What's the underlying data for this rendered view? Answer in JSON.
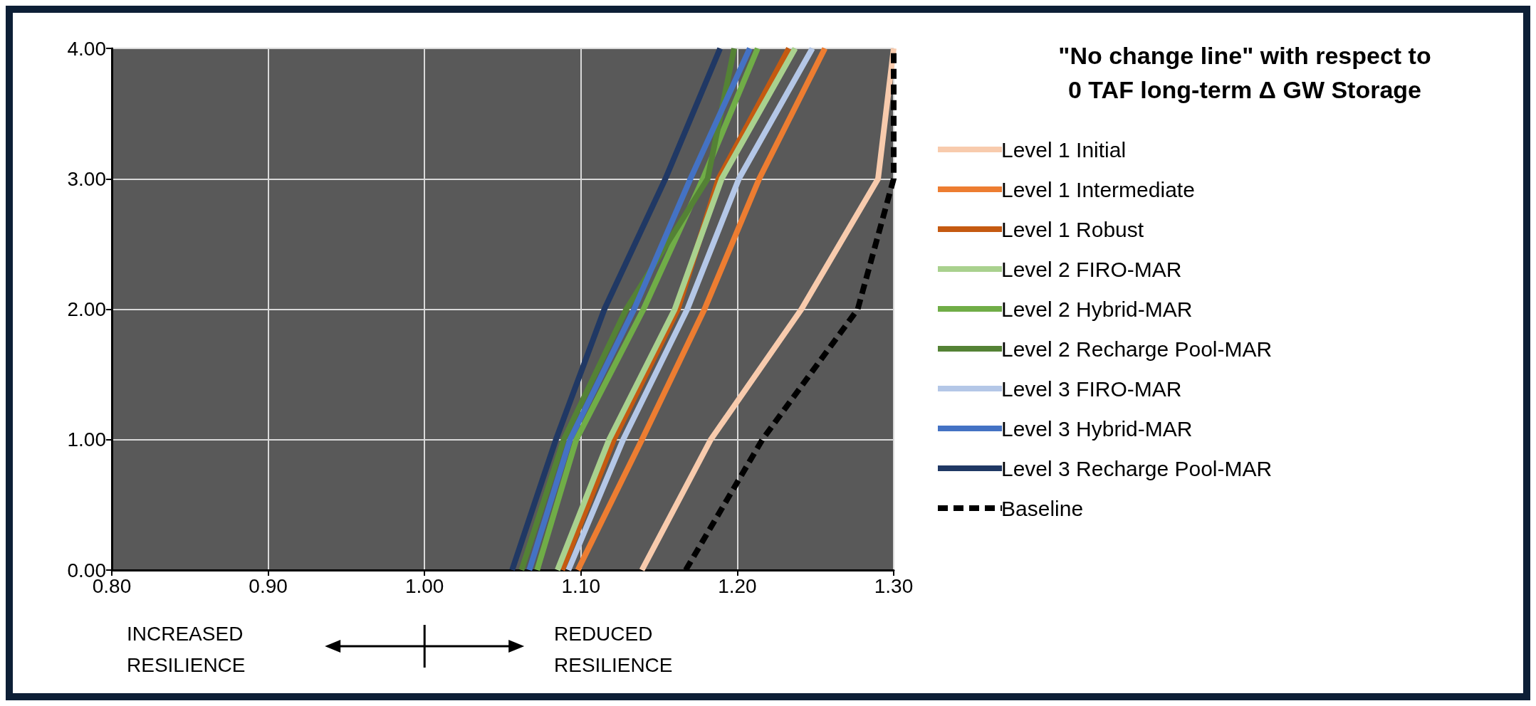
{
  "chart_data": {
    "type": "line",
    "legend_title": "\"No change line\" with respect to\n0 TAF long-term Δ GW Storage",
    "xlim": [
      0.8,
      1.3
    ],
    "ylim": [
      0,
      4
    ],
    "xticks": [
      {
        "value": 0.8,
        "label": "0.80"
      },
      {
        "value": 0.9,
        "label": "0.90"
      },
      {
        "value": 1.0,
        "label": "1.00"
      },
      {
        "value": 1.1,
        "label": "1.10"
      },
      {
        "value": 1.2,
        "label": "1.20"
      },
      {
        "value": 1.3,
        "label": "1.30"
      }
    ],
    "yticks": [
      {
        "value": 0,
        "label": "0.00"
      },
      {
        "value": 1,
        "label": "1.00"
      },
      {
        "value": 2,
        "label": "2.00"
      },
      {
        "value": 3,
        "label": "3.00"
      },
      {
        "value": 4,
        "label": "4.00"
      }
    ],
    "grid": true,
    "legend": "right",
    "marker": "none",
    "line_style": "solid",
    "annotations": [
      "INCREASED\nRESILIENCE",
      "REDUCED\nRESILIENCE"
    ],
    "series": [
      {
        "name": "Level 1 Initial",
        "color": "#f8cbad",
        "x": [
          1.139,
          1.183,
          1.241,
          1.29,
          1.3
        ],
        "values": [
          0,
          1,
          2,
          3,
          4
        ]
      },
      {
        "name": "Level 1 Intermediate",
        "color": "#ed7d31",
        "x": [
          1.098,
          1.139,
          1.179,
          1.214,
          1.256
        ],
        "values": [
          0,
          1,
          2,
          3,
          4
        ]
      },
      {
        "name": "Level 1 Robust",
        "color": "#c55a11",
        "x": [
          1.088,
          1.121,
          1.162,
          1.188,
          1.233
        ],
        "values": [
          0,
          1,
          2,
          3,
          4
        ]
      },
      {
        "name": "Level 2 FIRO-MAR",
        "color": "#a9d18e",
        "x": [
          1.085,
          1.118,
          1.16,
          1.19,
          1.237
        ],
        "values": [
          0,
          1,
          2,
          3,
          4
        ]
      },
      {
        "name": "Level 2 Hybrid-MAR",
        "color": "#70ad47",
        "x": [
          1.072,
          1.097,
          1.14,
          1.178,
          1.213
        ],
        "values": [
          0,
          1,
          2,
          3,
          4
        ]
      },
      {
        "name": "Level 2 Recharge Pool-MAR",
        "color": "#548235",
        "x": [
          1.062,
          1.089,
          1.129,
          1.181,
          1.198
        ],
        "values": [
          0,
          1,
          2,
          3,
          4
        ]
      },
      {
        "name": "Level 3 FIRO-MAR",
        "color": "#b4c7e7",
        "x": [
          1.092,
          1.127,
          1.168,
          1.201,
          1.248
        ],
        "values": [
          0,
          1,
          2,
          3,
          4
        ]
      },
      {
        "name": "Level 3 Hybrid-MAR",
        "color": "#4472c4",
        "x": [
          1.067,
          1.093,
          1.134,
          1.17,
          1.208
        ],
        "values": [
          0,
          1,
          2,
          3,
          4
        ]
      },
      {
        "name": "Level 3 Recharge Pool-MAR",
        "color": "#203864",
        "x": [
          1.056,
          1.084,
          1.115,
          1.154,
          1.189
        ],
        "values": [
          0,
          1,
          2,
          3,
          4
        ]
      },
      {
        "name": "Baseline",
        "color": "#000000",
        "line_style": "dashed",
        "x": [
          1.167,
          1.216,
          1.277,
          1.3,
          1.3
        ],
        "values": [
          0,
          1,
          2,
          3,
          4
        ]
      }
    ]
  }
}
